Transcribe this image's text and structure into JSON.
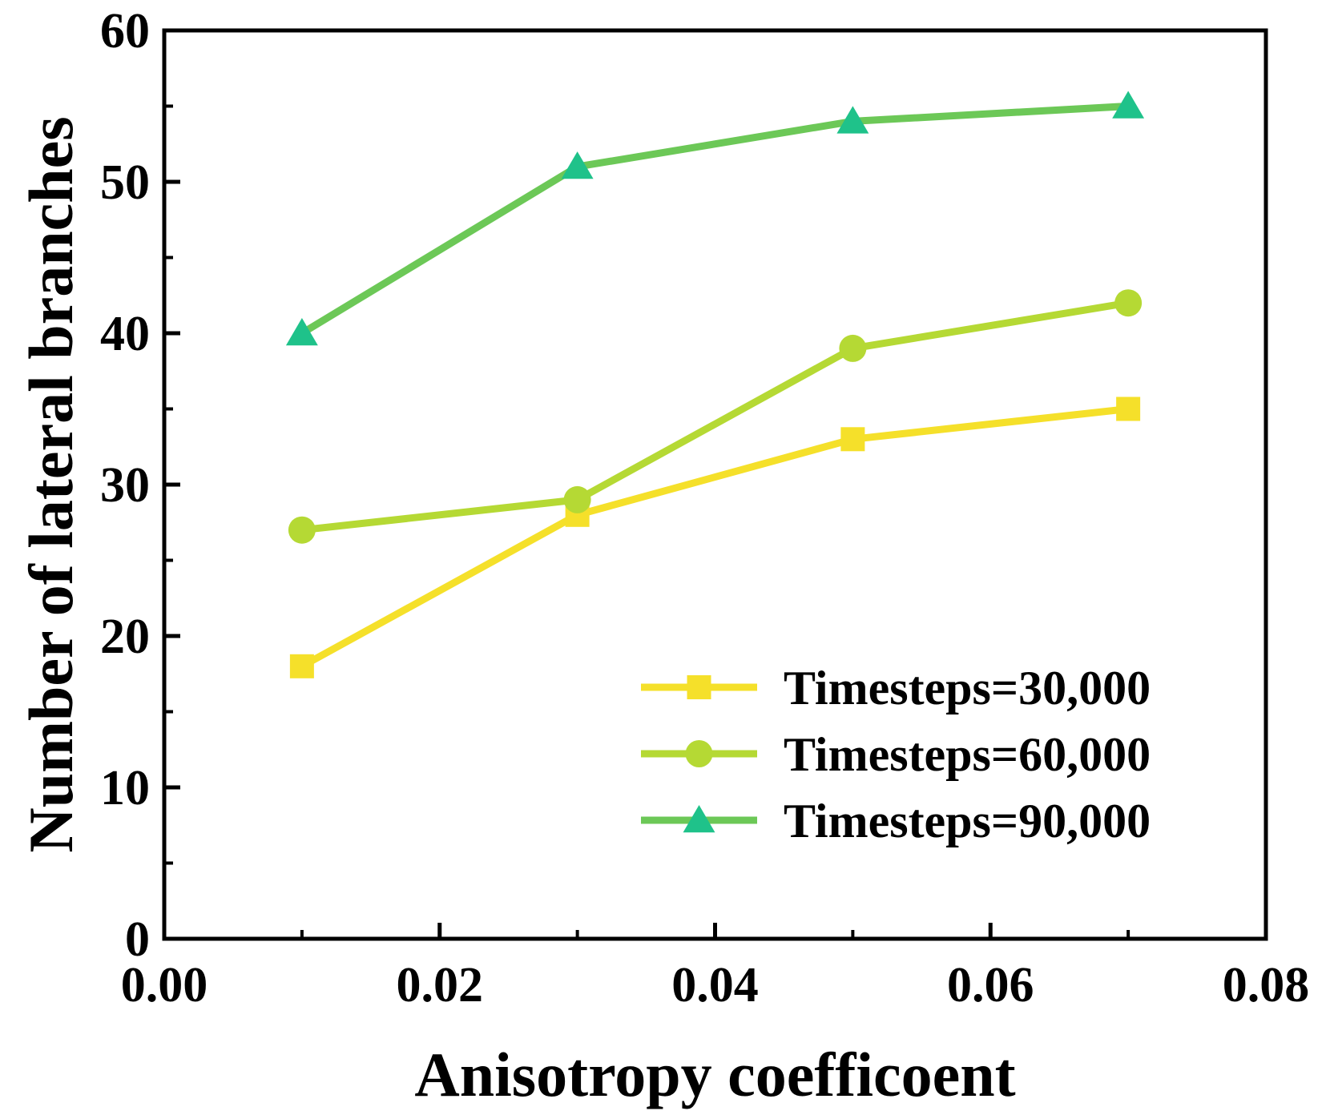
{
  "chart_data": {
    "type": "line",
    "title": "",
    "xlabel": "Anisotropy coefficoent",
    "ylabel": "Number of lateral branches",
    "xlim": [
      0.0,
      0.08
    ],
    "ylim": [
      0,
      60
    ],
    "xticks": [
      0.0,
      0.02,
      0.04,
      0.06,
      0.08
    ],
    "xtick_labels": [
      "0.00",
      "0.02",
      "0.04",
      "0.06",
      "0.08"
    ],
    "yticks": [
      0,
      10,
      20,
      30,
      40,
      50,
      60
    ],
    "ytick_labels": [
      "0",
      "10",
      "20",
      "30",
      "40",
      "50",
      "60"
    ],
    "grid": false,
    "legend_position": "bottom-right",
    "x": [
      0.01,
      0.03,
      0.05,
      0.07
    ],
    "series": [
      {
        "name": "Timesteps=30,000",
        "values": [
          18,
          28,
          33,
          35
        ],
        "color": "#f5e02a",
        "marker": "square"
      },
      {
        "name": "Timesteps=60,000",
        "values": [
          27,
          29,
          39,
          42
        ],
        "color": "#b5d934",
        "marker": "circle"
      },
      {
        "name": "Timesteps=90,000",
        "values": [
          40,
          51,
          54,
          55
        ],
        "color": "#6cc857",
        "marker": "triangle",
        "marker_color": "#1fc28a"
      }
    ]
  }
}
